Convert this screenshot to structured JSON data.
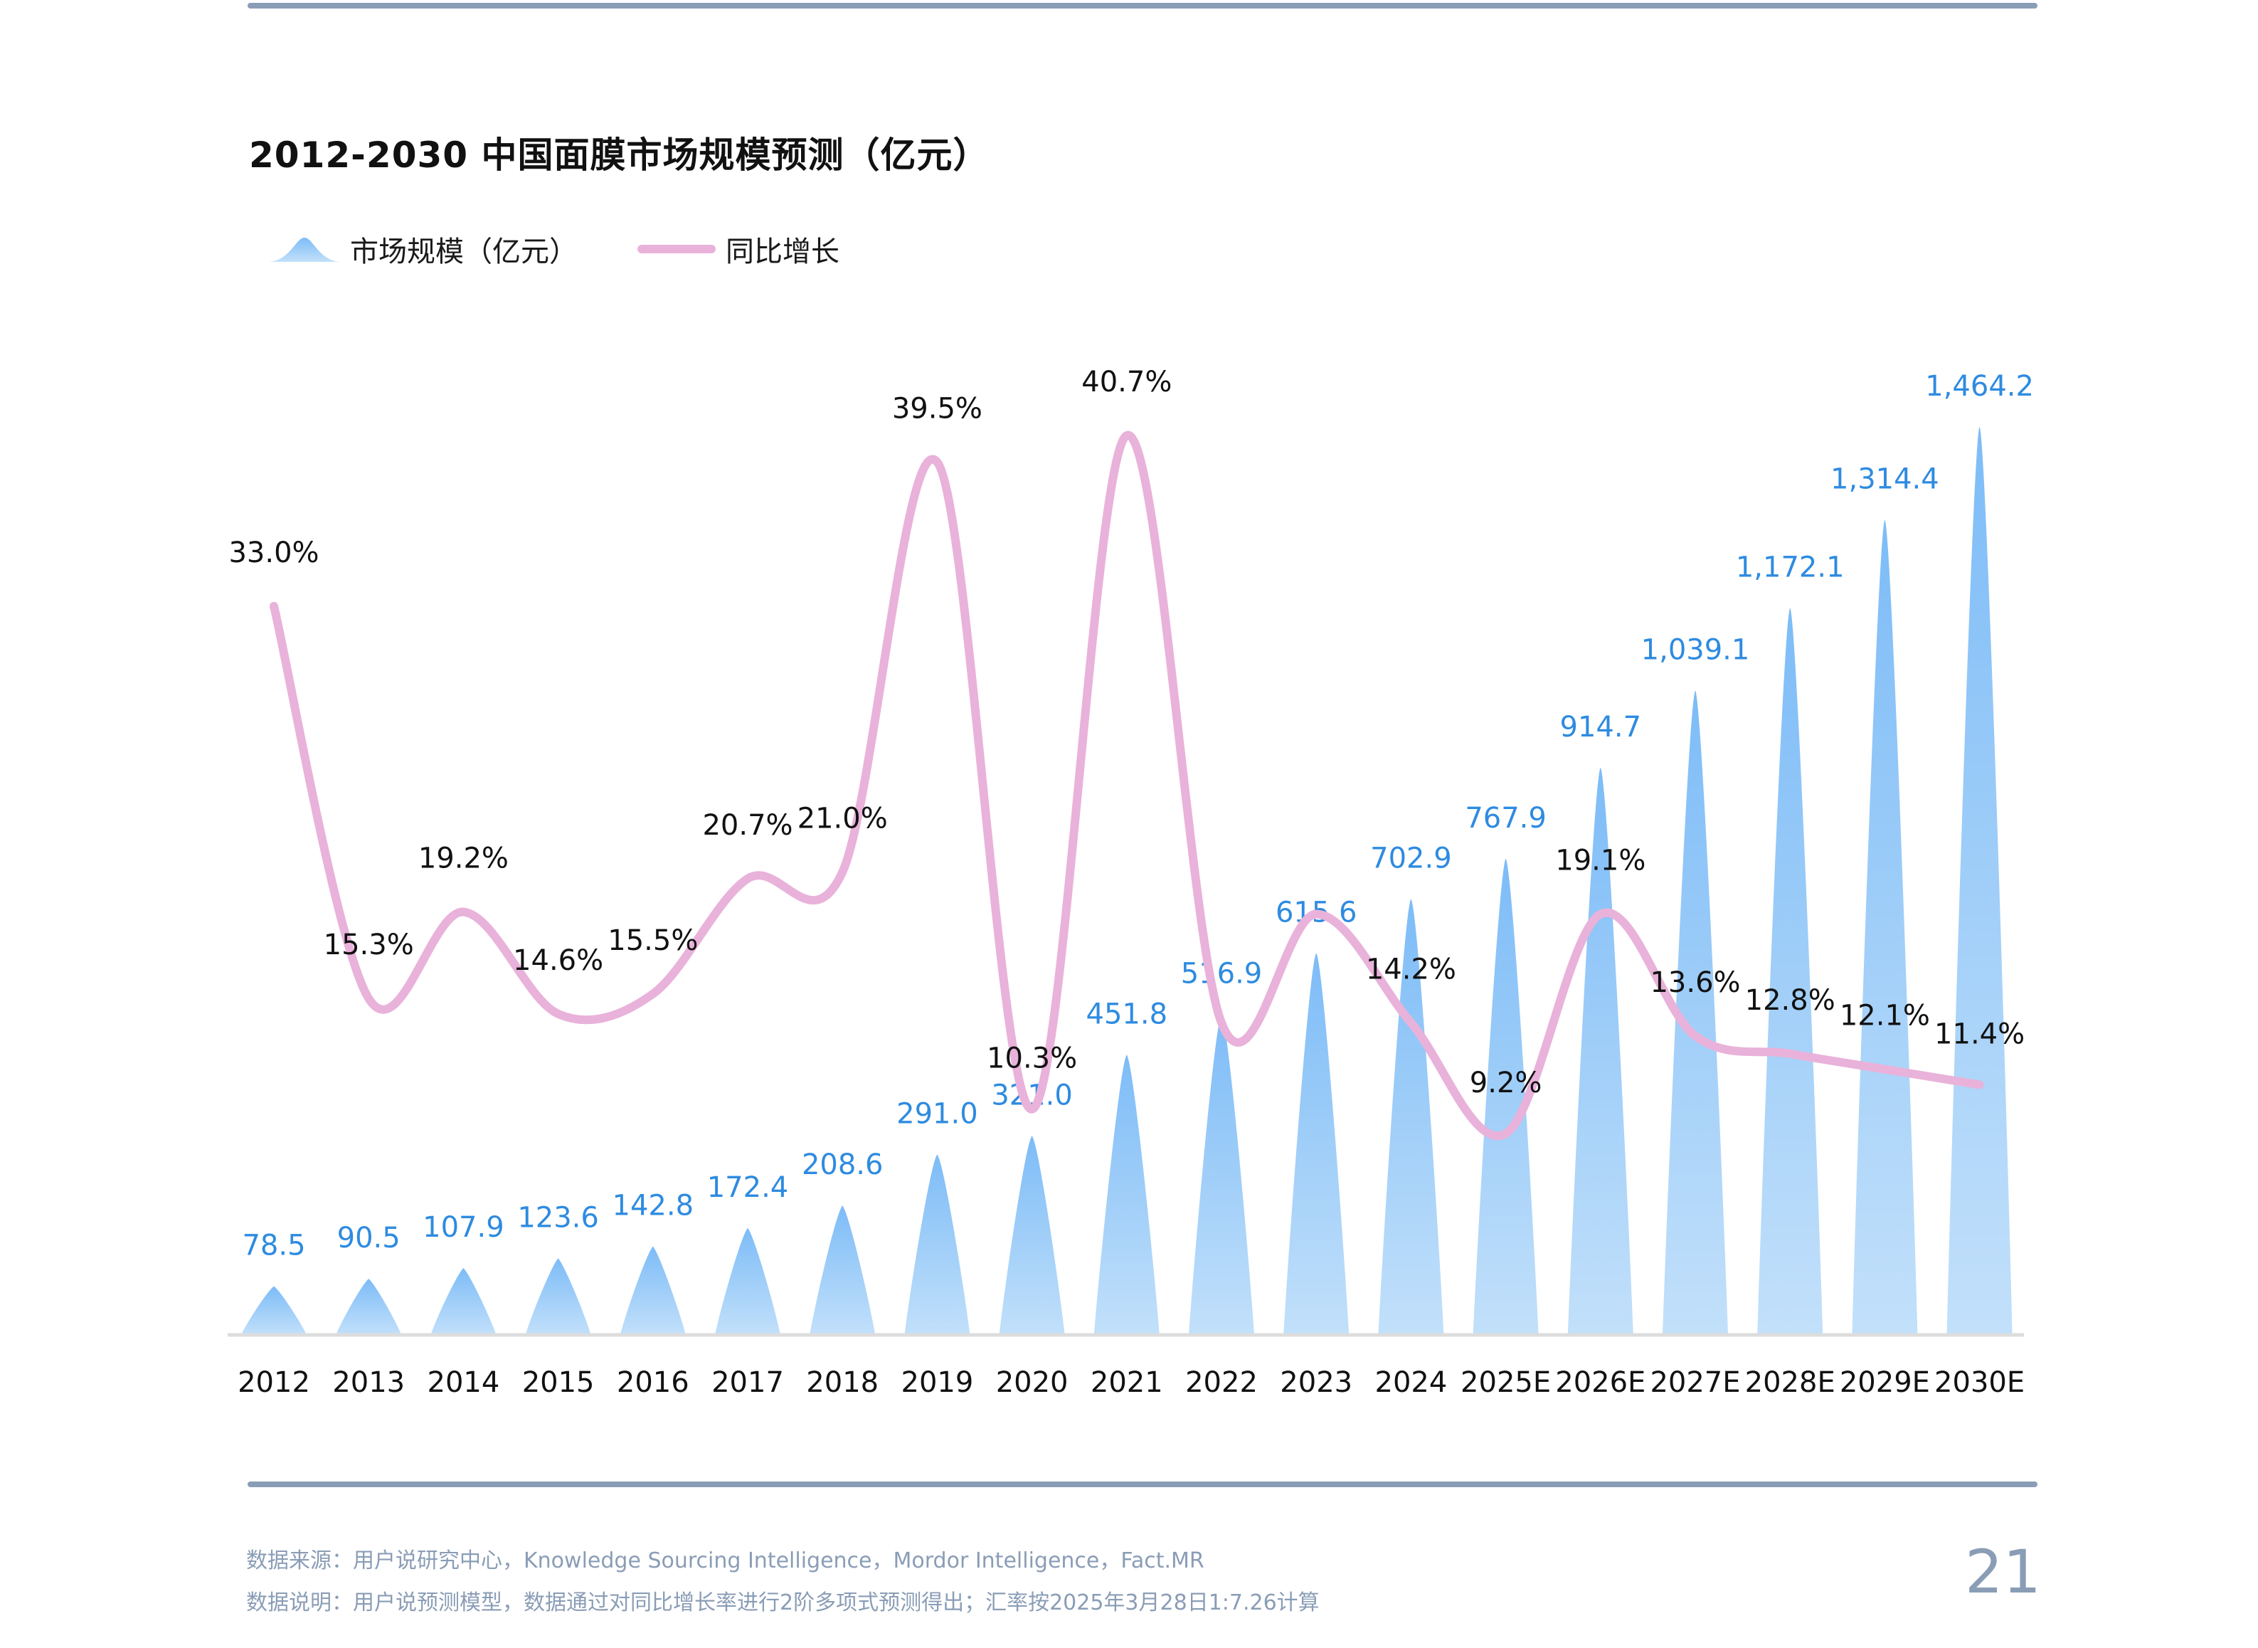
{
  "page": {
    "title": "2012-2030 中国面膜市场规模预测（亿元）",
    "footer_source": "数据来源：用户说研究中心，Knowledge Sourcing Intelligence，Mordor Intelligence，Fact.MR",
    "footer_note": "数据说明：用户说预测模型，数据通过对同比增长率进行2阶多项式预测得出；汇率按2025年3月28日1:7.26计算",
    "page_number": "21"
  },
  "colors": {
    "bar_top": "#7dbcf7",
    "bar_bottom": "#c2e0fa",
    "bar_label": "#2e8be0",
    "line": "#e9b2da",
    "line_label": "#111111",
    "axis": "#dddddd",
    "rule": "#8a9db6"
  },
  "chart_data": {
    "type": "bar+line",
    "title": "2012-2030 中国面膜市场规模预测（亿元）",
    "xlabel": "",
    "ylabel": "",
    "legend": [
      "市场规模（亿元）",
      "同比增长"
    ],
    "legend_position": "top-left",
    "grid": false,
    "categories": [
      "2012",
      "2013",
      "2014",
      "2015",
      "2016",
      "2017",
      "2018",
      "2019",
      "2020",
      "2021",
      "2022",
      "2023",
      "2024",
      "2025E",
      "2026E",
      "2027E",
      "2028E",
      "2029E",
      "2030E"
    ],
    "series": [
      {
        "name": "市场规模（亿元）",
        "type": "bar",
        "values": [
          78.5,
          90.5,
          107.9,
          123.6,
          142.8,
          172.4,
          208.6,
          291.0,
          321.0,
          451.8,
          516.9,
          615.6,
          702.9,
          767.9,
          914.7,
          1039.1,
          1172.1,
          1314.4,
          1464.2
        ],
        "labels": [
          "78.5",
          "90.5",
          "107.9",
          "123.6",
          "142.8",
          "172.4",
          "208.6",
          "291.0",
          "321.0",
          "451.8",
          "516.9",
          "615.6",
          "702.9",
          "767.9",
          "914.7",
          "1,039.1",
          "1,172.1",
          "1,314.4",
          "1,464.2"
        ]
      },
      {
        "name": "同比增长",
        "type": "line",
        "unit": "%",
        "values": [
          33.0,
          15.3,
          19.2,
          14.6,
          15.5,
          20.7,
          21.0,
          39.5,
          10.3,
          40.7,
          14.2,
          19.1,
          14.2,
          9.2,
          19.1,
          13.6,
          12.8,
          12.1,
          11.4
        ],
        "labels": [
          "33.0%",
          "15.3%",
          "19.2%",
          "14.6%",
          "15.5%",
          "20.7%",
          "21.0%",
          "39.5%",
          "10.3%",
          "40.7%",
          "",
          "",
          "14.2%",
          "9.2%",
          "19.1%",
          "13.6%",
          "12.8%",
          "12.1%",
          "11.4%"
        ]
      }
    ],
    "ylim_bar": [
      0,
      1464.2
    ],
    "ylim_line": [
      9.2,
      40.7
    ]
  }
}
